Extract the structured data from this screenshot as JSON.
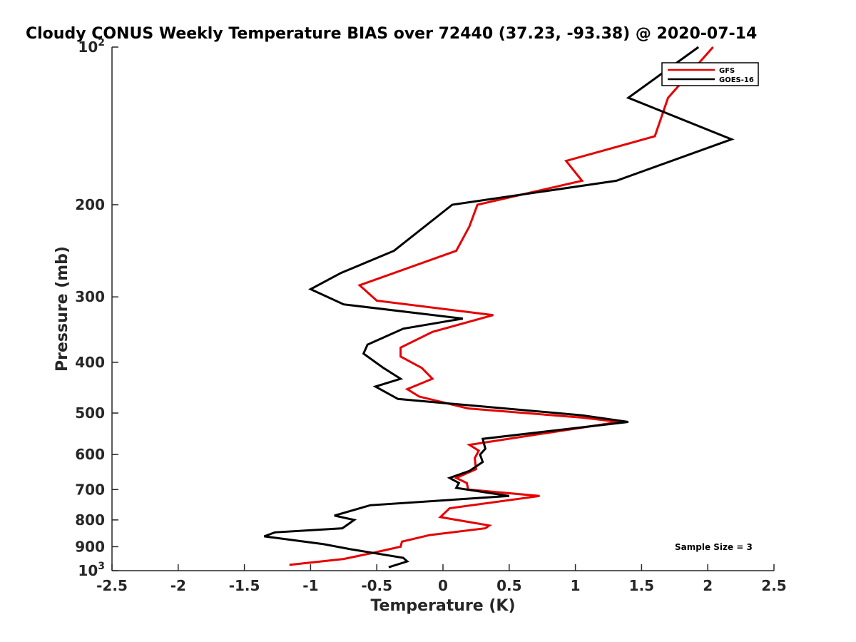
{
  "chart_data": {
    "type": "line",
    "title": "Cloudy CONUS Weekly Temperature BIAS over 72440 (37.23, -93.38) @ 2020-07-14",
    "xlabel": "Temperature (K)",
    "ylabel": "Pressure (mb)",
    "xlim": [
      -2.5,
      2.5
    ],
    "ylim": [
      100,
      1000
    ],
    "y_scale": "log",
    "y_reversed": true,
    "x_ticks": [
      -2.5,
      -2,
      -1.5,
      -1,
      -0.5,
      0,
      0.5,
      1,
      1.5,
      2,
      2.5
    ],
    "x_tick_labels": [
      "-2.5",
      "-2",
      "-1.5",
      "-1",
      "-0.5",
      "0",
      "0.5",
      "1",
      "1.5",
      "2",
      "2.5"
    ],
    "y_ticks_plain": [
      200,
      300,
      400,
      500,
      600,
      700,
      800,
      900
    ],
    "y_tick_labels_plain": [
      "200",
      "300",
      "400",
      "500",
      "600",
      "700",
      "800",
      "900"
    ],
    "y_ticks_power": [
      {
        "value": 100,
        "base": "10",
        "exp": "2"
      },
      {
        "value": 1000,
        "base": "10",
        "exp": "3"
      }
    ],
    "grid": false,
    "legend_position": "top-right",
    "annotation": "Sample Size = 3",
    "series": [
      {
        "name": "GFS",
        "color": "#e60000",
        "points": [
          [
            2.04,
            100
          ],
          [
            1.7,
            125
          ],
          [
            1.6,
            148
          ],
          [
            0.93,
            165
          ],
          [
            1.05,
            180
          ],
          [
            0.26,
            200
          ],
          [
            0.2,
            220
          ],
          [
            0.1,
            245
          ],
          [
            -0.63,
            285
          ],
          [
            -0.5,
            305
          ],
          [
            0.38,
            325
          ],
          [
            -0.08,
            350
          ],
          [
            -0.32,
            375
          ],
          [
            -0.32,
            390
          ],
          [
            -0.16,
            410
          ],
          [
            -0.08,
            430
          ],
          [
            -0.27,
            450
          ],
          [
            -0.18,
            465
          ],
          [
            0.19,
            490
          ],
          [
            1.05,
            510
          ],
          [
            1.33,
            520
          ],
          [
            0.2,
            575
          ],
          [
            0.27,
            590
          ],
          [
            0.24,
            610
          ],
          [
            0.25,
            640
          ],
          [
            0.1,
            665
          ],
          [
            0.18,
            680
          ],
          [
            0.19,
            700
          ],
          [
            0.73,
            720
          ],
          [
            0.05,
            760
          ],
          [
            -0.02,
            790
          ],
          [
            0.35,
            820
          ],
          [
            0.32,
            830
          ],
          [
            -0.1,
            855
          ],
          [
            -0.31,
            880
          ],
          [
            -0.32,
            900
          ],
          [
            -0.53,
            925
          ],
          [
            -0.75,
            950
          ],
          [
            -1.16,
            975
          ]
        ]
      },
      {
        "name": "GOES-16",
        "color": "#000000",
        "points": [
          [
            1.93,
            100
          ],
          [
            1.4,
            125
          ],
          [
            2.18,
            150
          ],
          [
            1.31,
            180
          ],
          [
            0.07,
            200
          ],
          [
            -0.37,
            245
          ],
          [
            -0.77,
            270
          ],
          [
            -1.0,
            290
          ],
          [
            -0.75,
            310
          ],
          [
            0.15,
            330
          ],
          [
            -0.3,
            345
          ],
          [
            -0.57,
            370
          ],
          [
            -0.6,
            385
          ],
          [
            -0.45,
            410
          ],
          [
            -0.32,
            430
          ],
          [
            -0.51,
            445
          ],
          [
            -0.34,
            470
          ],
          [
            1.05,
            505
          ],
          [
            1.4,
            520
          ],
          [
            0.3,
            560
          ],
          [
            0.32,
            585
          ],
          [
            0.28,
            600
          ],
          [
            0.3,
            620
          ],
          [
            0.2,
            645
          ],
          [
            0.05,
            665
          ],
          [
            0.12,
            680
          ],
          [
            0.1,
            695
          ],
          [
            0.5,
            720
          ],
          [
            -0.55,
            750
          ],
          [
            -0.82,
            785
          ],
          [
            -0.67,
            800
          ],
          [
            -0.76,
            830
          ],
          [
            -1.27,
            845
          ],
          [
            -1.35,
            860
          ],
          [
            -0.9,
            890
          ],
          [
            -0.7,
            910
          ],
          [
            -0.3,
            945
          ],
          [
            -0.27,
            960
          ],
          [
            -0.41,
            985
          ]
        ]
      }
    ]
  }
}
